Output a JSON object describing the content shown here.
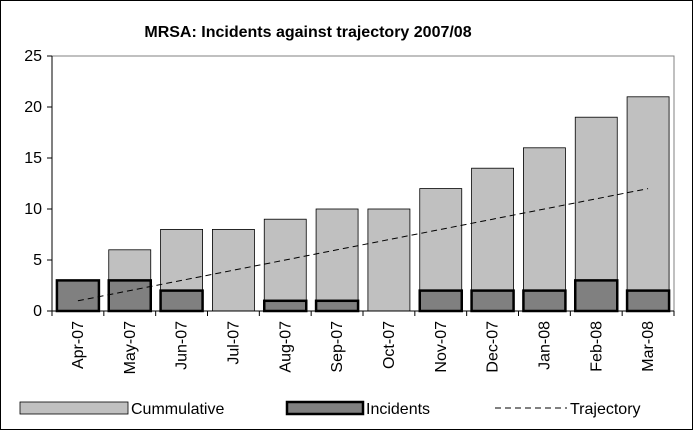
{
  "chart_data": {
    "type": "bar",
    "title": "MRSA: Incidents against trajectory 2007/08",
    "xlabel": "",
    "ylabel": "",
    "ylim": [
      0,
      25
    ],
    "yticks": [
      "0",
      "5",
      "10",
      "15",
      "20",
      "25"
    ],
    "categories": [
      "Apr-07",
      "May-07",
      "Jun-07",
      "Jul-07",
      "Aug-07",
      "Sep-07",
      "Oct-07",
      "Nov-07",
      "Dec-07",
      "Jan-08",
      "Feb-08",
      "Mar-08"
    ],
    "series": [
      {
        "name": "Cummulative",
        "type": "bar",
        "color": "#c0c0c0",
        "values": [
          3,
          6,
          8,
          8,
          9,
          10,
          10,
          12,
          14,
          16,
          19,
          21
        ]
      },
      {
        "name": "Incidents",
        "type": "bar",
        "color": "#808080",
        "values": [
          3,
          3,
          2,
          0,
          1,
          1,
          0,
          2,
          2,
          2,
          3,
          2
        ]
      },
      {
        "name": "Trajectory",
        "type": "line",
        "style": "dashed",
        "color": "#000000",
        "values": [
          1,
          2,
          3,
          4,
          5,
          6,
          7,
          8,
          9,
          10,
          11,
          12
        ]
      }
    ],
    "grid": false,
    "legend_position": "bottom"
  }
}
